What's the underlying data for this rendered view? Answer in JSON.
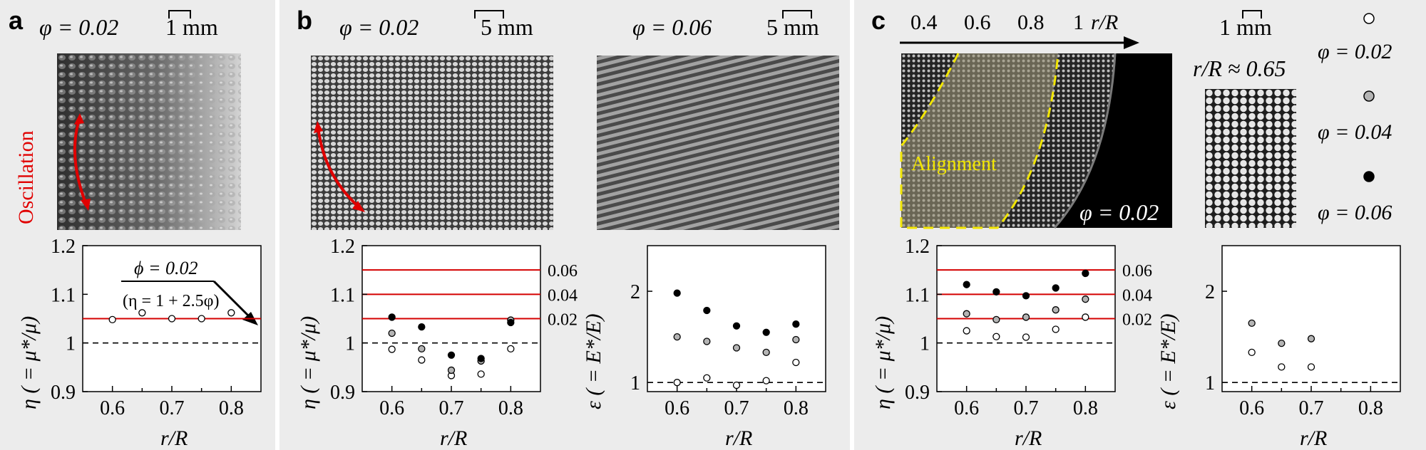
{
  "panel_labels": {
    "a": "a",
    "b": "b",
    "c": "c"
  },
  "panel_a": {
    "phi": "φ = 0.02",
    "scale": "1 mm",
    "oscillation": "Oscillation",
    "plot": {
      "ylabel": "η ( = μ*/μ)",
      "xlabel": "r/R",
      "yticks": [
        "0.9",
        "1",
        "1.1",
        "1.2"
      ],
      "xticks": [
        "0.6",
        "0.7",
        "0.8"
      ],
      "annot_line1": "ϕ = 0.02",
      "annot_line2": "(η = 1 + 2.5φ)"
    }
  },
  "panel_b": {
    "left_phi": "φ = 0.02",
    "left_scale": "5 mm",
    "right_phi": "φ = 0.06",
    "right_scale": "5 mm",
    "plot1": {
      "ylabel": "η ( = μ*/μ)",
      "xlabel": "r/R",
      "yticks": [
        "0.9",
        "1",
        "1.1",
        "1.2"
      ],
      "xticks": [
        "0.6",
        "0.7",
        "0.8"
      ],
      "right_labels": [
        "0.06",
        "0.04",
        "0.02"
      ]
    },
    "plot2": {
      "ylabel": "ε ( = E*/E)",
      "xlabel": "r/R",
      "yticks": [
        "1",
        "2"
      ],
      "xticks": [
        "0.6",
        "0.7",
        "0.8"
      ]
    }
  },
  "panel_c": {
    "axis_ticks": [
      "0.4",
      "0.6",
      "0.8",
      "1"
    ],
    "axis_label": "r/R",
    "alignment": "Alignment",
    "phi_in_image": "φ = 0.02",
    "scale": "1 mm",
    "ratio": "r/R ≈ 0.65",
    "legend": [
      "φ = 0.02",
      "φ = 0.04",
      "φ = 0.06"
    ],
    "plot1": {
      "ylabel": "η ( = μ*/μ)",
      "xlabel": "r/R",
      "yticks": [
        "0.9",
        "1",
        "1.1",
        "1.2"
      ],
      "xticks": [
        "0.6",
        "0.7",
        "0.8"
      ],
      "right_labels": [
        "0.06",
        "0.04",
        "0.02"
      ]
    },
    "plot2": {
      "ylabel": "ε ( = E*/E)",
      "xlabel": "r/R",
      "yticks": [
        "1",
        "2"
      ],
      "xticks": [
        "0.6",
        "0.7",
        "0.8"
      ]
    }
  },
  "chart_data": [
    {
      "type": "scatter",
      "panel": "a",
      "xlabel": "r/R",
      "ylabel": "η ( = μ*/μ)",
      "xlim": [
        0.55,
        0.85
      ],
      "ylim": [
        0.9,
        1.2
      ],
      "series": [
        {
          "name": "φ = 0.02",
          "fill": "#ffffff",
          "x": [
            0.6,
            0.65,
            0.7,
            0.75,
            0.8
          ],
          "y": [
            1.048,
            1.062,
            1.05,
            1.05,
            1.062
          ]
        }
      ],
      "reference_lines": [
        {
          "y": 1.05,
          "style": "solid",
          "color": "#d40000"
        },
        {
          "y": 1.0,
          "style": "dashed",
          "color": "#000000"
        }
      ]
    },
    {
      "type": "scatter",
      "panel": "b-left",
      "xlabel": "r/R",
      "ylabel": "η ( = μ*/μ)",
      "xlim": [
        0.55,
        0.85
      ],
      "ylim": [
        0.9,
        1.2
      ],
      "series": [
        {
          "name": "φ = 0.02",
          "fill": "#ffffff",
          "x": [
            0.6,
            0.65,
            0.7,
            0.75,
            0.8
          ],
          "y": [
            0.987,
            0.965,
            0.933,
            0.936,
            0.988
          ]
        },
        {
          "name": "φ = 0.04",
          "fill": "#b4b4b4",
          "x": [
            0.6,
            0.65,
            0.7,
            0.75,
            0.8
          ],
          "y": [
            1.02,
            0.988,
            0.944,
            0.963,
            1.047
          ]
        },
        {
          "name": "φ = 0.06",
          "fill": "#000000",
          "x": [
            0.6,
            0.65,
            0.7,
            0.75,
            0.8
          ],
          "y": [
            1.053,
            1.033,
            0.975,
            0.968,
            1.042
          ]
        }
      ],
      "reference_lines": [
        {
          "y": 1.15,
          "style": "solid",
          "color": "#d40000",
          "label": "0.06"
        },
        {
          "y": 1.1,
          "style": "solid",
          "color": "#d40000",
          "label": "0.04"
        },
        {
          "y": 1.05,
          "style": "solid",
          "color": "#d40000",
          "label": "0.02"
        },
        {
          "y": 1.0,
          "style": "dashed",
          "color": "#000000"
        }
      ]
    },
    {
      "type": "scatter",
      "panel": "b-right",
      "xlabel": "r/R",
      "ylabel": "ε ( = E*/E)",
      "xlim": [
        0.55,
        0.85
      ],
      "ylim": [
        0.9,
        2.5
      ],
      "series": [
        {
          "name": "φ = 0.02",
          "fill": "#ffffff",
          "x": [
            0.6,
            0.65,
            0.7,
            0.75,
            0.8
          ],
          "y": [
            1.0,
            1.05,
            0.97,
            1.02,
            1.22
          ]
        },
        {
          "name": "φ = 0.04",
          "fill": "#b4b4b4",
          "x": [
            0.6,
            0.65,
            0.7,
            0.75,
            0.8
          ],
          "y": [
            1.5,
            1.45,
            1.38,
            1.33,
            1.47
          ]
        },
        {
          "name": "φ = 0.06",
          "fill": "#000000",
          "x": [
            0.6,
            0.65,
            0.7,
            0.75,
            0.8
          ],
          "y": [
            1.98,
            1.79,
            1.62,
            1.55,
            1.64
          ]
        }
      ],
      "reference_lines": [
        {
          "y": 1.0,
          "style": "dashed",
          "color": "#000000"
        }
      ]
    },
    {
      "type": "scatter",
      "panel": "c-left",
      "xlabel": "r/R",
      "ylabel": "η ( = μ*/μ)",
      "xlim": [
        0.55,
        0.85
      ],
      "ylim": [
        0.9,
        1.2
      ],
      "series": [
        {
          "name": "φ = 0.02",
          "fill": "#ffffff",
          "x": [
            0.6,
            0.65,
            0.7,
            0.75,
            0.8
          ],
          "y": [
            1.025,
            1.013,
            1.012,
            1.028,
            1.053
          ]
        },
        {
          "name": "φ = 0.04",
          "fill": "#b4b4b4",
          "x": [
            0.6,
            0.65,
            0.7,
            0.75,
            0.8
          ],
          "y": [
            1.06,
            1.048,
            1.053,
            1.068,
            1.09
          ]
        },
        {
          "name": "φ = 0.06",
          "fill": "#000000",
          "x": [
            0.6,
            0.65,
            0.7,
            0.75,
            0.8
          ],
          "y": [
            1.12,
            1.105,
            1.097,
            1.113,
            1.143
          ]
        }
      ],
      "reference_lines": [
        {
          "y": 1.15,
          "style": "solid",
          "color": "#d40000",
          "label": "0.06"
        },
        {
          "y": 1.1,
          "style": "solid",
          "color": "#d40000",
          "label": "0.04"
        },
        {
          "y": 1.05,
          "style": "solid",
          "color": "#d40000",
          "label": "0.02"
        },
        {
          "y": 1.0,
          "style": "dashed",
          "color": "#000000"
        }
      ]
    },
    {
      "type": "scatter",
      "panel": "c-right",
      "xlabel": "r/R",
      "ylabel": "ε ( = E*/E)",
      "xlim": [
        0.55,
        0.85
      ],
      "ylim": [
        0.9,
        2.5
      ],
      "series": [
        {
          "name": "φ = 0.02",
          "fill": "#ffffff",
          "x": [
            0.6,
            0.65,
            0.7
          ],
          "y": [
            1.33,
            1.17,
            1.17
          ]
        },
        {
          "name": "φ = 0.04",
          "fill": "#b4b4b4",
          "x": [
            0.6,
            0.65,
            0.7
          ],
          "y": [
            1.65,
            1.43,
            1.48
          ]
        }
      ],
      "reference_lines": [
        {
          "y": 1.0,
          "style": "dashed",
          "color": "#000000"
        }
      ]
    }
  ]
}
